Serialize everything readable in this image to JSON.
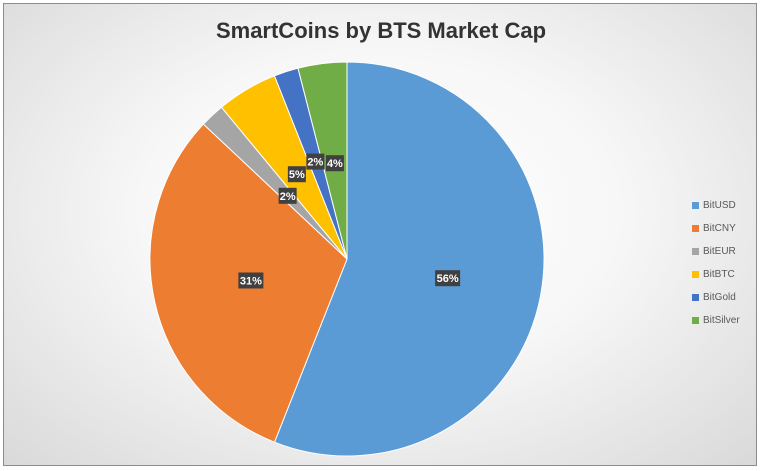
{
  "chart_data": {
    "type": "pie",
    "title": "SmartCoins by BTS Market Cap",
    "categories": [
      "BitUSD",
      "BitCNY",
      "BitEUR",
      "BitBTC",
      "BitGold",
      "BitSilver"
    ],
    "values": [
      56,
      31,
      2,
      5,
      2,
      4
    ],
    "data_labels": [
      "56%",
      "31%",
      "2%",
      "5%",
      "2%",
      "4%"
    ],
    "colors": [
      "#5B9BD5",
      "#ED7D31",
      "#A5A5A5",
      "#FFC000",
      "#4472C4",
      "#70AD47"
    ],
    "legend_position": "right"
  }
}
